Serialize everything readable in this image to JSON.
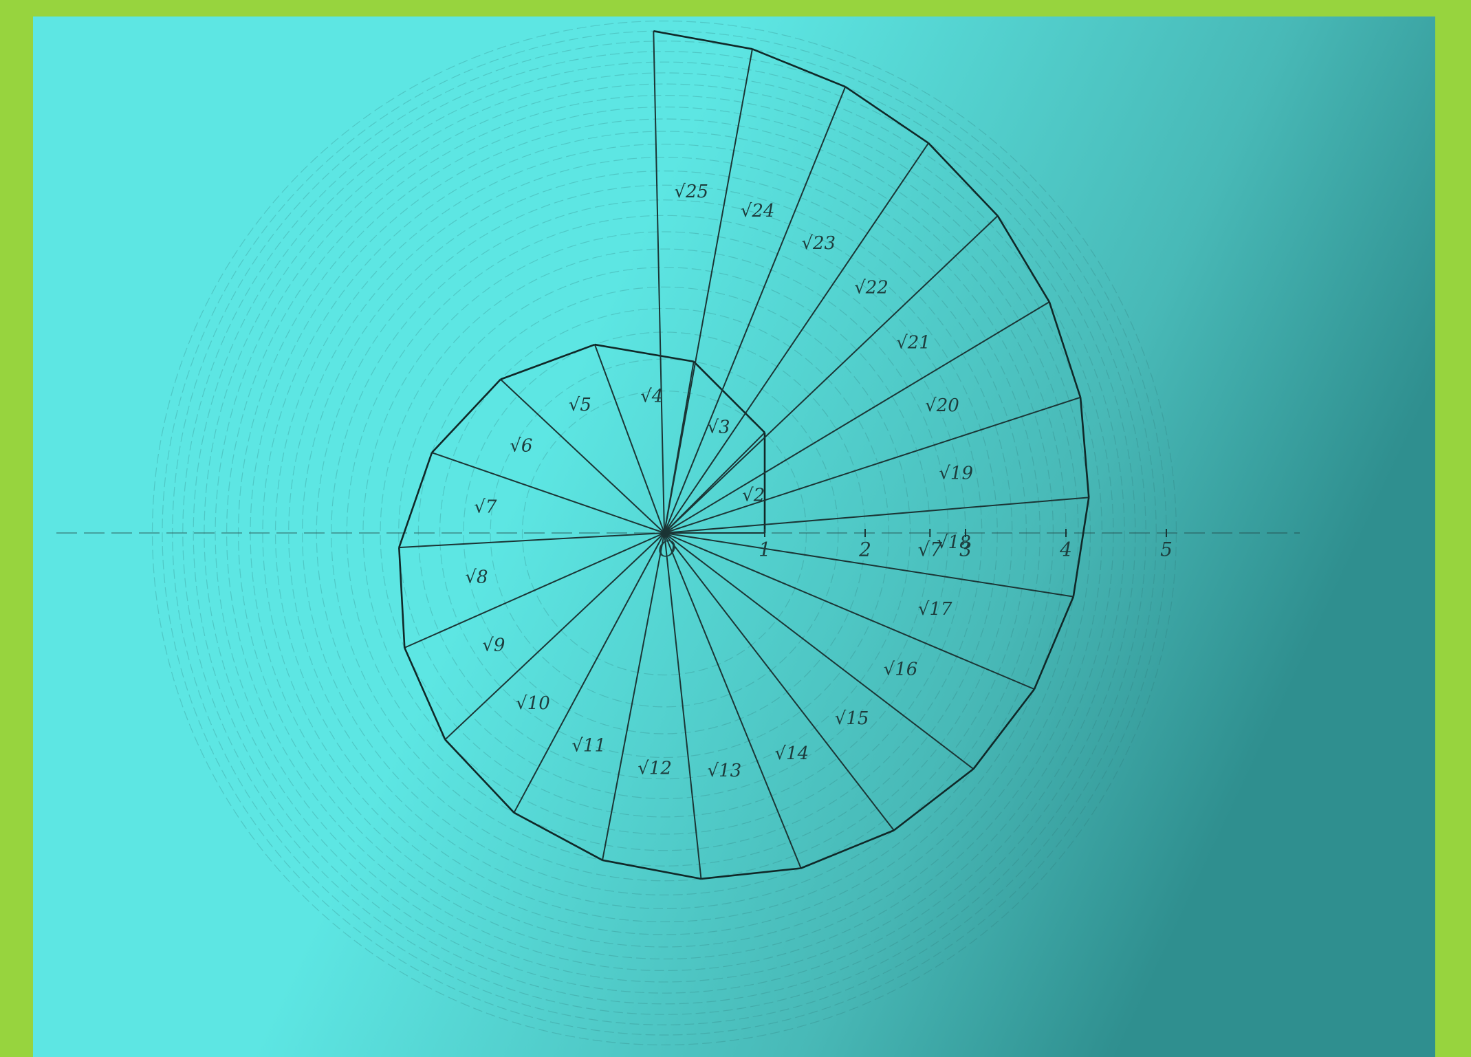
{
  "origin": "O",
  "axis_ticks": [
    "1",
    "2",
    "√7",
    "3",
    "4",
    "5"
  ],
  "hypotenuse_labels": [
    "√2",
    "√3",
    "√4",
    "√5",
    "√6",
    "√7",
    "√8",
    "√9",
    "√10",
    "√11",
    "√12",
    "√13",
    "√14",
    "√15",
    "√16",
    "√17",
    "√18",
    "√19",
    "√20",
    "√21",
    "√22",
    "√23",
    "√24",
    "√25"
  ]
}
